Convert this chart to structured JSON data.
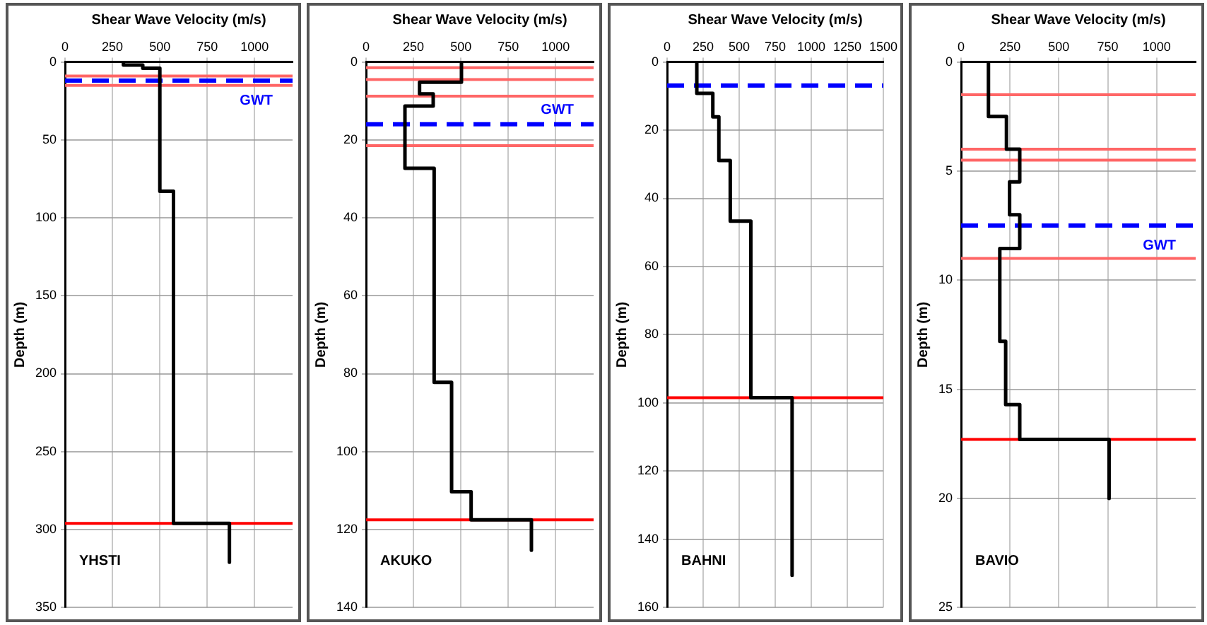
{
  "chart_data": [
    {
      "type": "line",
      "xlabel": "Shear Wave Velocity (m/s)",
      "ylabel": "Depth (m)",
      "xlim": [
        0,
        1200
      ],
      "xticks": [
        0,
        250,
        500,
        750,
        1000
      ],
      "ylim": [
        350,
        0
      ],
      "yticks": [
        0,
        50,
        100,
        150,
        200,
        250,
        300,
        350
      ],
      "grid": true,
      "marker": "none",
      "line_style": "solid",
      "series": [
        {
          "color": "#000000",
          "x": [
            308,
            308,
            410,
            410,
            500,
            500,
            572,
            572,
            867,
            867
          ],
          "values": [
            0,
            2,
            2,
            4,
            4,
            83,
            83,
            296,
            296,
            321
          ]
        }
      ],
      "ref_lines": [
        {
          "axis": "y",
          "value": 9,
          "color": "#ff6666",
          "line_style": "solid"
        },
        {
          "axis": "y",
          "value": 15,
          "color": "#ff6666",
          "line_style": "solid"
        },
        {
          "axis": "y",
          "value": 12,
          "color": "#0000ff",
          "line_style": "dashed",
          "label": "GWT"
        },
        {
          "axis": "y",
          "value": 296,
          "color": "#ff0000",
          "line_style": "solid"
        }
      ],
      "annotations": [
        "YHSTI"
      ]
    },
    {
      "type": "line",
      "xlabel": "Shear Wave Velocity (m/s)",
      "ylabel": "Depth (m)",
      "xlim": [
        0,
        1200
      ],
      "xticks": [
        0,
        250,
        500,
        750,
        1000
      ],
      "ylim": [
        140,
        0
      ],
      "yticks": [
        0,
        20,
        40,
        60,
        80,
        100,
        120,
        140
      ],
      "grid": true,
      "marker": "none",
      "line_style": "solid",
      "series": [
        {
          "color": "#000000",
          "x": [
            503,
            503,
            282,
            282,
            354,
            354,
            205,
            205,
            359,
            359,
            451,
            451,
            554,
            554,
            872,
            872
          ],
          "values": [
            0,
            5.2,
            5.2,
            8.2,
            8.2,
            11.3,
            11.3,
            27.3,
            27.3,
            82.2,
            82.2,
            110.3,
            110.3,
            117.5,
            117.5,
            125.3
          ]
        }
      ],
      "ref_lines": [
        {
          "axis": "y",
          "value": 1.5,
          "color": "#ff6666",
          "line_style": "solid"
        },
        {
          "axis": "y",
          "value": 4.5,
          "color": "#ff6666",
          "line_style": "solid"
        },
        {
          "axis": "y",
          "value": 8.8,
          "color": "#ff6666",
          "line_style": "solid"
        },
        {
          "axis": "y",
          "value": 21.5,
          "color": "#ff6666",
          "line_style": "solid"
        },
        {
          "axis": "y",
          "value": 16,
          "color": "#0000ff",
          "line_style": "dashed",
          "label": "GWT"
        },
        {
          "axis": "y",
          "value": 117.5,
          "color": "#ff0000",
          "line_style": "solid"
        }
      ],
      "annotations": [
        "AKUKO"
      ]
    },
    {
      "type": "line",
      "xlabel": "Shear Wave Velocity (m/s)",
      "ylabel": "Depth (m)",
      "xlim": [
        0,
        1500
      ],
      "xticks": [
        0,
        250,
        500,
        750,
        1000,
        1250,
        1500
      ],
      "ylim": [
        160,
        0
      ],
      "yticks": [
        0,
        20,
        40,
        60,
        80,
        100,
        120,
        140,
        160
      ],
      "grid": true,
      "marker": "none",
      "line_style": "solid",
      "series": [
        {
          "color": "#000000",
          "x": [
            206,
            206,
            317,
            317,
            359,
            359,
            438,
            438,
            581,
            581,
            867,
            867
          ],
          "values": [
            0,
            9.2,
            9.2,
            16.1,
            16.1,
            28.9,
            28.9,
            46.7,
            46.7,
            98.5,
            98.5,
            150.6
          ]
        }
      ],
      "ref_lines": [
        {
          "axis": "y",
          "value": 6.9,
          "color": "#0000ff",
          "line_style": "dashed"
        },
        {
          "axis": "y",
          "value": 98.5,
          "color": "#ff0000",
          "line_style": "solid"
        }
      ],
      "annotations": [
        "BAHNI"
      ]
    },
    {
      "type": "line",
      "xlabel": "Shear Wave Velocity (m/s)",
      "ylabel": "Depth (m)",
      "xlim": [
        0,
        1200
      ],
      "xticks": [
        0,
        250,
        500,
        750,
        1000
      ],
      "ylim": [
        25,
        0
      ],
      "yticks": [
        0,
        5,
        10,
        15,
        20,
        25
      ],
      "grid": true,
      "marker": "none",
      "line_style": "solid",
      "series": [
        {
          "color": "#000000",
          "x": [
            140,
            140,
            232,
            232,
            300,
            300,
            248,
            248,
            300,
            300,
            198,
            198,
            228,
            228,
            300,
            300,
            757,
            757
          ],
          "values": [
            0,
            2.5,
            2.5,
            4,
            4,
            5.5,
            5.5,
            7,
            7,
            8.55,
            8.55,
            12.8,
            12.8,
            15.7,
            15.7,
            17.3,
            17.3,
            20
          ]
        }
      ],
      "ref_lines": [
        {
          "axis": "y",
          "value": 1.5,
          "color": "#ff6666",
          "line_style": "solid"
        },
        {
          "axis": "y",
          "value": 4,
          "color": "#ff6666",
          "line_style": "solid"
        },
        {
          "axis": "y",
          "value": 4.5,
          "color": "#ff6666",
          "line_style": "solid"
        },
        {
          "axis": "y",
          "value": 9,
          "color": "#ff6666",
          "line_style": "solid"
        },
        {
          "axis": "y",
          "value": 7.5,
          "color": "#0000ff",
          "line_style": "dashed",
          "label": "GWT"
        },
        {
          "axis": "y",
          "value": 17.3,
          "color": "#ff0000",
          "line_style": "solid"
        }
      ],
      "annotations": [
        "BAVIO"
      ]
    }
  ]
}
